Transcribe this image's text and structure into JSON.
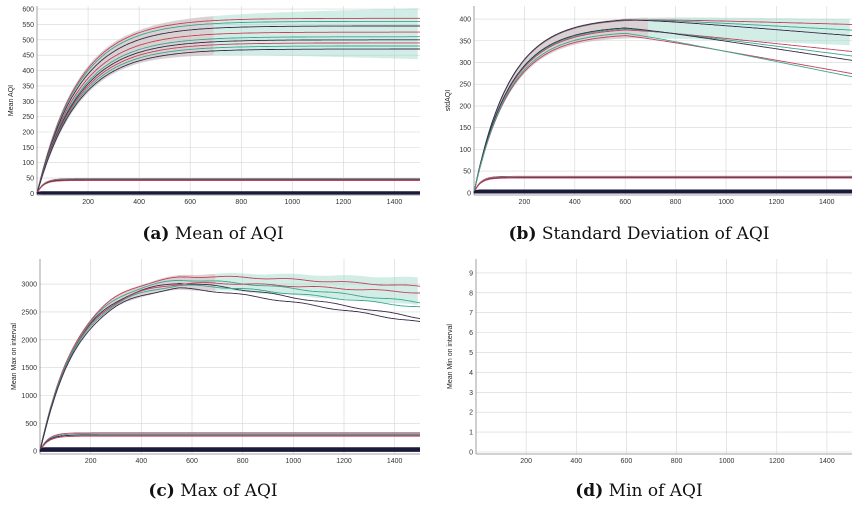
{
  "figure": {
    "panels": [
      {
        "id": "a",
        "caption_tag": "(a)",
        "caption_text": "Mean of AQI"
      },
      {
        "id": "b",
        "caption_tag": "(b)",
        "caption_text": "Standard Deviation of AQI"
      },
      {
        "id": "c",
        "caption_tag": "(c)",
        "caption_text": "Max of AQI"
      },
      {
        "id": "d",
        "caption_tag": "(d)",
        "caption_text": "Min of AQI"
      }
    ]
  },
  "colors": {
    "red": "#c8405a",
    "teal": "#3aa890",
    "dark": "#3a2a4a",
    "navy": "#1a1a3a",
    "grid": "#d6d6d6",
    "band_red": "#e8a0b0",
    "band_teal": "#9ad8c6"
  },
  "chart_data": [
    {
      "type": "line",
      "ylabel": "Mean AQI",
      "xticks": [
        200,
        400,
        600,
        800,
        1000,
        1200,
        1400
      ],
      "yticks": [
        0,
        50,
        100,
        150,
        200,
        250,
        300,
        350,
        400,
        450,
        500,
        550,
        600
      ],
      "xlim": [
        0,
        1500
      ],
      "ylim": [
        -5,
        610
      ],
      "grid": true,
      "series_groups": [
        {
          "plateaus": [
            570,
            560,
            545,
            525,
            510,
            500,
            490,
            480,
            470
          ],
          "rise": 160,
          "shape": "flat"
        },
        {
          "plateaus": [
            48,
            46,
            44,
            42
          ],
          "rise": 25,
          "shape": "flat"
        },
        {
          "plateaus": [
            5,
            3,
            1,
            -1
          ],
          "rise": 5,
          "shape": "flat"
        }
      ]
    },
    {
      "type": "line",
      "ylabel": "stdAQI",
      "xticks": [
        200,
        400,
        600,
        800,
        1000,
        1200,
        1400
      ],
      "yticks": [
        0,
        50,
        100,
        150,
        200,
        250,
        300,
        350,
        400
      ],
      "xlim": [
        0,
        1500
      ],
      "ylim": [
        -5,
        430
      ],
      "grid": true,
      "series_groups": [
        {
          "plateaus": [
            402,
            395,
            388,
            380,
            375,
            370,
            367,
            365
          ],
          "rise": 140,
          "shape": "slowdecline"
        },
        {
          "plateaus": [
            38,
            36,
            35,
            34
          ],
          "rise": 25,
          "shape": "flat"
        },
        {
          "plateaus": [
            6,
            4,
            2,
            0
          ],
          "rise": 5,
          "shape": "flat"
        }
      ]
    },
    {
      "type": "line",
      "ylabel": "Mean Max on interval",
      "xticks": [
        200,
        400,
        600,
        800,
        1000,
        1200,
        1400
      ],
      "yticks": [
        0,
        500,
        1000,
        1500,
        2000,
        2500,
        3000
      ],
      "xlim": [
        0,
        1500
      ],
      "ylim": [
        -50,
        3450
      ],
      "grid": true,
      "series_groups": [
        {
          "plateaus": [
            3200,
            3150,
            3100,
            3080,
            3050,
            3000
          ],
          "rise": 150,
          "shape": "peakdecline"
        },
        {
          "plateaus": [
            330,
            310,
            290,
            270
          ],
          "rise": 30,
          "shape": "flat"
        },
        {
          "plateaus": [
            60,
            40,
            20,
            0
          ],
          "rise": 5,
          "shape": "flat"
        }
      ]
    },
    {
      "type": "line",
      "ylabel": "Mean Min on interval",
      "xticks": [
        200,
        400,
        600,
        800,
        1000,
        1200,
        1400
      ],
      "yticks": [
        0,
        1,
        2,
        3,
        4,
        5,
        6,
        7,
        8,
        9
      ],
      "xlim": [
        0,
        1500
      ],
      "ylim": [
        -0.1,
        9.7
      ],
      "grid": true,
      "series_groups": []
    }
  ]
}
